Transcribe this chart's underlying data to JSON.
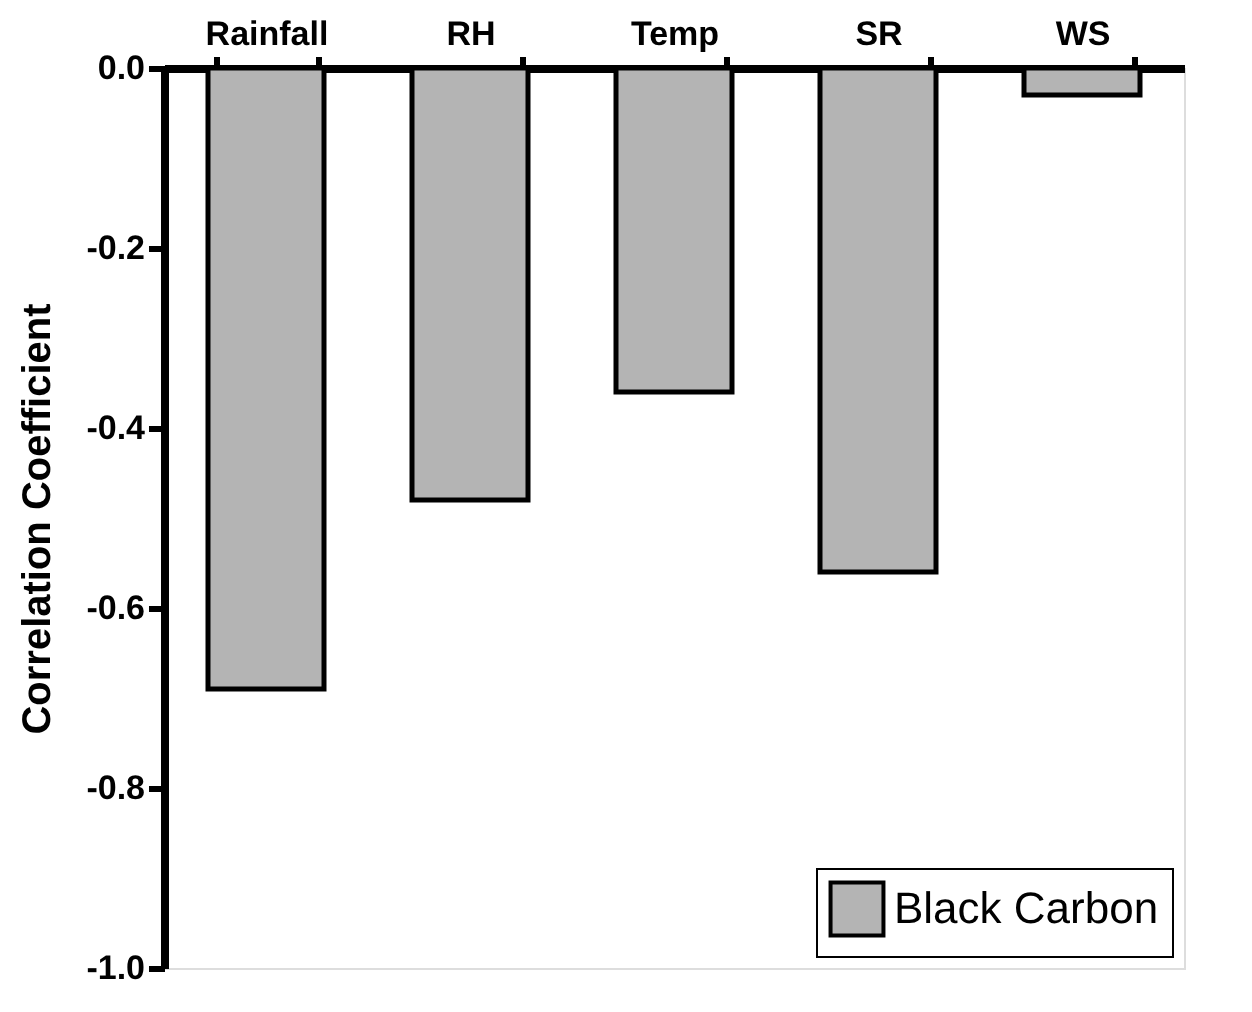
{
  "chart_data": {
    "type": "bar",
    "ylabel": "Correlation Coefficient",
    "categories": [
      "Rainfall",
      "RH",
      "Temp",
      "SR",
      "WS"
    ],
    "series": [
      {
        "name": "Black Carbon",
        "color": "#b4b4b4",
        "values": [
          -0.69,
          -0.48,
          -0.36,
          -0.56,
          -0.03
        ]
      }
    ],
    "ylim": [
      -1.0,
      0.0
    ],
    "yticks": [
      {
        "value": -1.0,
        "label": "-1.0"
      },
      {
        "value": -0.8,
        "label": "-0.8"
      },
      {
        "value": -0.6,
        "label": "-0.6"
      },
      {
        "value": -0.4,
        "label": "-0.4"
      },
      {
        "value": -0.2,
        "label": "-0.2"
      },
      {
        "value": 0.0,
        "label": "0.0"
      }
    ],
    "grid": false,
    "legend": "bottom right"
  }
}
